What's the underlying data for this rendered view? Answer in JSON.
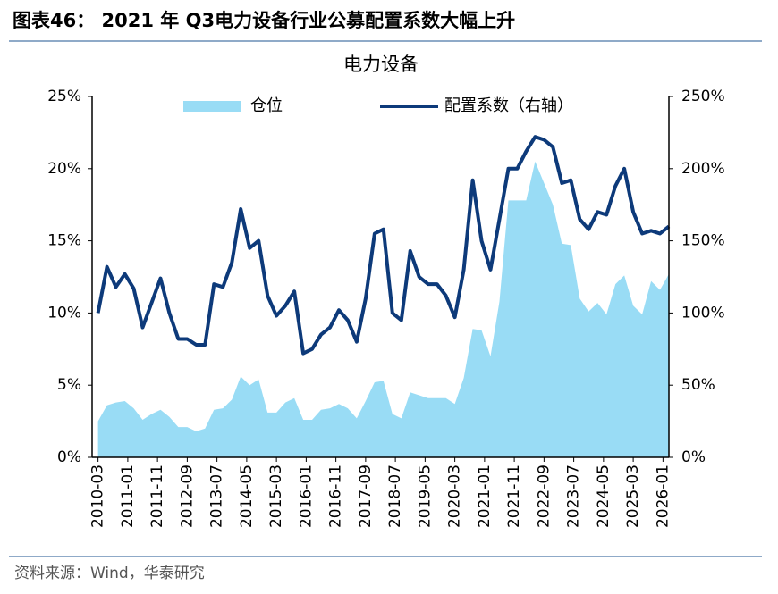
{
  "chart_data": {
    "type": "line",
    "caption": "图表46： 2021 年 Q3电力设备行业公募配置系数大幅上升",
    "title": "电力设备",
    "source": "资料来源：Wind，华泰研究",
    "x": [
      "2010-03",
      "2010-06",
      "2010-09",
      "2010-12",
      "2011-03",
      "2011-06",
      "2011-09",
      "2011-12",
      "2012-03",
      "2012-06",
      "2012-09",
      "2012-12",
      "2013-03",
      "2013-06",
      "2013-09",
      "2013-12",
      "2014-03",
      "2014-06",
      "2014-09",
      "2014-12",
      "2015-03",
      "2015-06",
      "2015-09",
      "2015-12",
      "2016-03",
      "2016-06",
      "2016-09",
      "2016-12",
      "2017-03",
      "2017-06",
      "2017-09",
      "2017-12",
      "2018-03",
      "2018-06",
      "2018-09",
      "2018-12",
      "2019-03",
      "2019-06",
      "2019-09",
      "2019-12",
      "2020-03",
      "2020-06",
      "2020-09",
      "2020-12",
      "2021-03",
      "2021-06",
      "2021-09",
      "2021-12",
      "2022-03",
      "2022-06",
      "2022-09",
      "2022-12",
      "2023-03",
      "2023-06",
      "2023-09",
      "2023-12",
      "2024-03",
      "2024-06",
      "2024-09",
      "2024-12",
      "2025-03",
      "2025-06",
      "2025-09",
      "2025-12",
      "2026-03"
    ],
    "series": [
      {
        "name": "仓位",
        "type": "area",
        "color": "#99dcf5",
        "values": [
          2.5,
          3.6,
          3.8,
          3.9,
          3.4,
          2.6,
          3.0,
          3.3,
          2.8,
          2.1,
          2.1,
          1.8,
          2.0,
          3.3,
          3.4,
          4.0,
          5.6,
          5.0,
          5.4,
          3.1,
          3.1,
          3.8,
          4.1,
          2.6,
          2.6,
          3.3,
          3.4,
          3.7,
          3.4,
          2.7,
          3.9,
          5.2,
          5.3,
          3.0,
          2.7,
          4.5,
          4.3,
          4.1,
          4.1,
          4.1,
          3.7,
          5.5,
          8.9,
          8.8,
          7.0,
          10.8,
          17.8,
          17.8,
          17.8,
          20.5,
          19.0,
          17.5,
          14.8,
          14.7,
          11.0,
          10.1,
          10.7,
          9.9,
          12.0,
          12.6,
          10.5,
          9.9,
          12.2,
          11.6,
          12.7
        ]
      },
      {
        "name": "配置系数（右轴）",
        "type": "line",
        "axis": "y2",
        "color": "#0d3a7a",
        "values": [
          100,
          132,
          118,
          127,
          117,
          90,
          107,
          124,
          100,
          82,
          82,
          78,
          78,
          120,
          118,
          135,
          172,
          145,
          150,
          112,
          98,
          105,
          115,
          72,
          75,
          85,
          90,
          102,
          95,
          80,
          110,
          155,
          158,
          100,
          95,
          143,
          125,
          120,
          120,
          112,
          97,
          130,
          192,
          150,
          130,
          165,
          200,
          200,
          212,
          222,
          220,
          215,
          190,
          192,
          165,
          158,
          170,
          168,
          188,
          200,
          170,
          155,
          157,
          155,
          160
        ]
      }
    ],
    "xlim": [
      "2010-01",
      "2026-03"
    ],
    "xticks": [
      "2010-03",
      "2011-01",
      "2011-11",
      "2012-09",
      "2013-07",
      "2014-05",
      "2015-03",
      "2016-01",
      "2016-11",
      "2017-09",
      "2018-07",
      "2019-05",
      "2020-03",
      "2021-01",
      "2021-11",
      "2022-09",
      "2023-07",
      "2024-05",
      "2025-03",
      "2026-01"
    ],
    "ylim": [
      0,
      25
    ],
    "yticks": [
      {
        "value": 0,
        "label": "0%"
      },
      {
        "value": 5,
        "label": "5%"
      },
      {
        "value": 10,
        "label": "10%"
      },
      {
        "value": 15,
        "label": "15%"
      },
      {
        "value": 20,
        "label": "20%"
      },
      {
        "value": 25,
        "label": "25%"
      }
    ],
    "y2lim": [
      0,
      250
    ],
    "y2ticks": [
      {
        "value": 0,
        "label": "0%"
      },
      {
        "value": 50,
        "label": "50%"
      },
      {
        "value": 100,
        "label": "100%"
      },
      {
        "value": 150,
        "label": "150%"
      },
      {
        "value": 200,
        "label": "200%"
      },
      {
        "value": 250,
        "label": "250%"
      }
    ],
    "legend": "top"
  }
}
